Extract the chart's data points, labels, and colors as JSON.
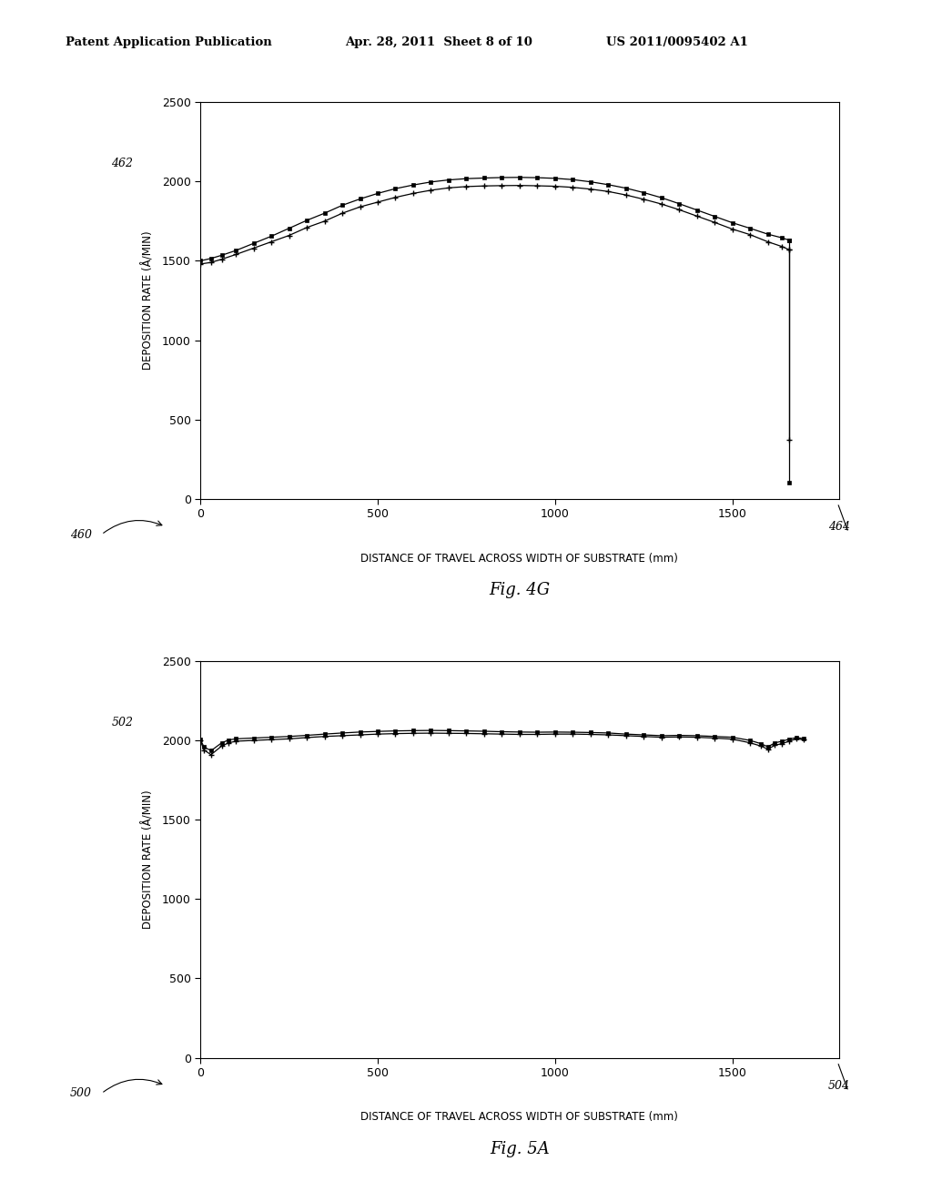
{
  "header_left": "Patent Application Publication",
  "header_mid": "Apr. 28, 2011  Sheet 8 of 10",
  "header_right": "US 2011/0095402 A1",
  "fig1_label": "Fig. 4G",
  "fig2_label": "Fig. 5A",
  "fig1_ref_label": "460",
  "fig1_xend_label": "464",
  "fig1_ytop_label": "462",
  "fig2_ref_label": "500",
  "fig2_xend_label": "504",
  "fig2_ytop_label": "502",
  "xlabel": "DISTANCE OF TRAVEL ACROSS WIDTH OF SUBSTRATE (mm)",
  "ylabel": "DEPOSITION RATE (Å/MIN)",
  "ylim": [
    0,
    2500
  ],
  "yticks": [
    0,
    500,
    1000,
    1500,
    2000,
    2500
  ],
  "xlim": [
    0,
    1800
  ],
  "xticks": [
    0,
    500,
    1000,
    1500
  ],
  "bg_color": "#ffffff",
  "fig1_line1_x": [
    0,
    30,
    60,
    100,
    150,
    200,
    250,
    300,
    350,
    400,
    450,
    500,
    550,
    600,
    650,
    700,
    750,
    800,
    850,
    900,
    950,
    1000,
    1050,
    1100,
    1150,
    1200,
    1250,
    1300,
    1350,
    1400,
    1450,
    1500,
    1550,
    1600,
    1640,
    1660,
    1660,
    1660
  ],
  "fig1_line1_y": [
    1480,
    1490,
    1510,
    1540,
    1580,
    1620,
    1660,
    1710,
    1750,
    1800,
    1840,
    1870,
    1900,
    1925,
    1945,
    1960,
    1968,
    1972,
    1974,
    1975,
    1973,
    1970,
    1963,
    1952,
    1937,
    1915,
    1888,
    1858,
    1822,
    1782,
    1742,
    1700,
    1665,
    1620,
    1590,
    1570,
    1000,
    370
  ],
  "fig1_line2_x": [
    0,
    30,
    60,
    100,
    150,
    200,
    250,
    300,
    350,
    400,
    450,
    500,
    550,
    600,
    650,
    700,
    750,
    800,
    850,
    900,
    950,
    1000,
    1050,
    1100,
    1150,
    1200,
    1250,
    1300,
    1350,
    1400,
    1450,
    1500,
    1550,
    1600,
    1640,
    1660,
    1660,
    1660
  ],
  "fig1_line2_y": [
    1500,
    1515,
    1535,
    1565,
    1610,
    1655,
    1705,
    1755,
    1800,
    1850,
    1890,
    1925,
    1955,
    1978,
    1997,
    2010,
    2018,
    2022,
    2025,
    2026,
    2024,
    2020,
    2012,
    1998,
    1980,
    1958,
    1930,
    1898,
    1860,
    1820,
    1780,
    1740,
    1705,
    1668,
    1645,
    1630,
    970,
    100
  ],
  "fig2_line1_x": [
    0,
    10,
    30,
    60,
    80,
    100,
    150,
    200,
    250,
    300,
    350,
    400,
    450,
    500,
    550,
    600,
    650,
    700,
    750,
    800,
    850,
    900,
    950,
    1000,
    1050,
    1100,
    1150,
    1200,
    1250,
    1300,
    1350,
    1400,
    1450,
    1500,
    1550,
    1580,
    1600,
    1620,
    1640,
    1660,
    1680,
    1700
  ],
  "fig2_line1_y": [
    2000,
    1940,
    1910,
    1965,
    1985,
    1995,
    2000,
    2005,
    2010,
    2018,
    2025,
    2030,
    2035,
    2040,
    2043,
    2045,
    2046,
    2045,
    2044,
    2042,
    2040,
    2038,
    2038,
    2040,
    2040,
    2038,
    2035,
    2030,
    2025,
    2020,
    2022,
    2020,
    2015,
    2008,
    1985,
    1965,
    1945,
    1970,
    1980,
    1995,
    2010,
    2005
  ],
  "fig2_line2_x": [
    0,
    10,
    30,
    60,
    80,
    100,
    150,
    200,
    250,
    300,
    350,
    400,
    450,
    500,
    550,
    600,
    650,
    700,
    750,
    800,
    850,
    900,
    950,
    1000,
    1050,
    1100,
    1150,
    1200,
    1250,
    1300,
    1350,
    1400,
    1450,
    1500,
    1550,
    1580,
    1600,
    1620,
    1640,
    1660,
    1680,
    1700
  ],
  "fig2_line2_y": [
    2005,
    1960,
    1935,
    1985,
    2003,
    2010,
    2015,
    2020,
    2025,
    2032,
    2040,
    2047,
    2053,
    2057,
    2060,
    2062,
    2063,
    2062,
    2060,
    2058,
    2055,
    2053,
    2052,
    2053,
    2052,
    2050,
    2047,
    2040,
    2035,
    2030,
    2032,
    2030,
    2025,
    2020,
    2000,
    1980,
    1960,
    1985,
    1995,
    2008,
    2018,
    2012
  ]
}
